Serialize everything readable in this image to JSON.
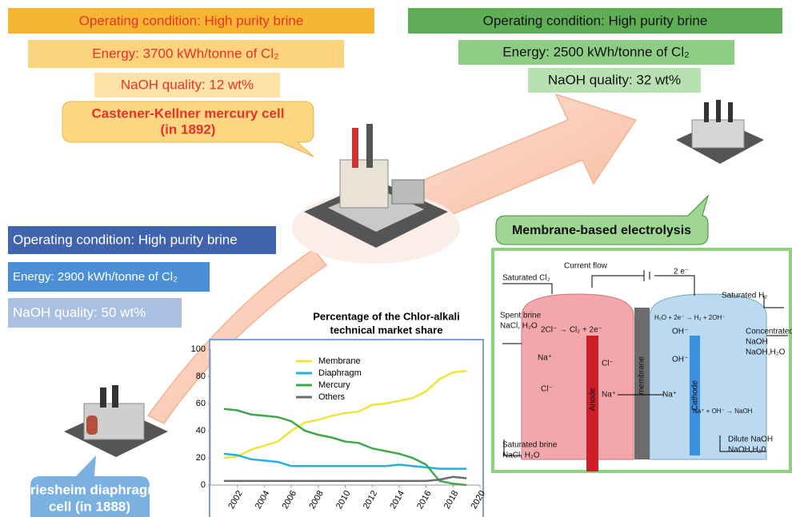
{
  "mercury": {
    "condition": "Operating condition: High purity brine",
    "energy": "Energy: 3700 kWh/tonne of Cl₂",
    "naoh": "NaOH quality: 12 wt%",
    "label": [
      "Castener-Kellner mercury cell",
      "(in 1892)"
    ]
  },
  "membrane": {
    "condition": "Operating condition: High purity brine",
    "energy": "Energy: 2500 kWh/tonne of Cl₂",
    "naoh": "NaOH quality: 32 wt%",
    "label": "Membrane-based electrolysis"
  },
  "diaphragm": {
    "condition": "Operating condition: High purity brine",
    "energy": "Energy: 2900 kWh/tonne of Cl₂",
    "naoh": "NaOH quality: 50 wt%",
    "label": [
      "Griesheim diaphragm",
      "cell  (in 1888)"
    ]
  },
  "cell_diagram": {
    "labels": [
      "Current flow",
      "Saturated Cl₂",
      "2 e⁻",
      "Saturated H₂",
      "Spent brine",
      "NaCl, H₂O",
      "2Cl⁻ → Cl₂ + 2e⁻",
      "H₂O + 2e⁻ → H₂ + 2OH⁻",
      "Concentrated",
      "NaOH",
      "NaOH,H₂O",
      "OH⁻",
      "OH⁻",
      "Na⁺",
      "Cl⁻",
      "Cl⁻",
      "Na⁺",
      "Na⁺",
      "Anode",
      "membrane",
      "Cathode",
      "Na⁺ + OH⁻ → NaOH",
      "Saturated brine",
      "NaCl, H₂O",
      "Dilute NaOH",
      "NaOH,H₂0"
    ]
  },
  "chart_data": {
    "type": "line",
    "title": [
      "Percentage of the Chlor-alkali",
      "technical market share"
    ],
    "x": [
      2001,
      2002,
      2003,
      2004,
      2005,
      2006,
      2007,
      2008,
      2009,
      2010,
      2011,
      2012,
      2013,
      2014,
      2015,
      2016,
      2017,
      2018,
      2019
    ],
    "series": [
      {
        "name": "Membrane",
        "color": "#f0e43a",
        "values": [
          20,
          21,
          26,
          29,
          32,
          40,
          46,
          48,
          51,
          53,
          54,
          59,
          60,
          62,
          64,
          69,
          78,
          83,
          84
        ]
      },
      {
        "name": "Diaphragm",
        "color": "#22b2e0",
        "values": [
          23,
          22,
          19,
          18,
          17,
          14,
          14,
          14,
          14,
          14,
          14,
          14,
          14,
          15,
          14,
          13,
          12,
          12,
          12
        ]
      },
      {
        "name": "Mercury",
        "color": "#3ea84a",
        "values": [
          56,
          55,
          52,
          51,
          50,
          47,
          40,
          37,
          35,
          32,
          31,
          27,
          25,
          23,
          20,
          15,
          3,
          1,
          0
        ]
      },
      {
        "name": "Others",
        "color": "#6b6b6b",
        "values": [
          3,
          3,
          3,
          3,
          3,
          3,
          3,
          3,
          3,
          3,
          3,
          3,
          3,
          3,
          3,
          3,
          4,
          6,
          5
        ]
      }
    ],
    "xlim": [
      2000,
      2020
    ],
    "xticks": [
      2002,
      2004,
      2006,
      2008,
      2010,
      2012,
      2014,
      2016,
      2018,
      2020
    ],
    "ylim": [
      0,
      100
    ],
    "yticks": [
      0,
      20,
      40,
      60,
      80,
      100
    ],
    "grid": false
  }
}
